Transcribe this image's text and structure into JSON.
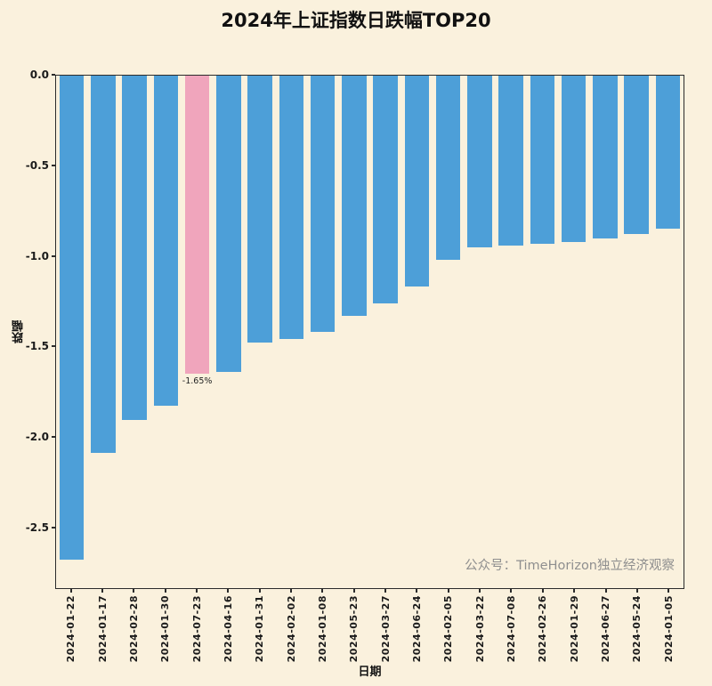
{
  "chart_data": {
    "type": "bar",
    "title": "2024年上证指数日跌幅TOP20",
    "xlabel": "日期",
    "ylabel": "跌幅",
    "ylim": [
      -2.84,
      0
    ],
    "ytick_labels": [
      "0.0",
      "-0.5",
      "-1.0",
      "-1.5",
      "-2.0",
      "-2.5"
    ],
    "ytick_values": [
      0,
      -0.5,
      -1.0,
      -1.5,
      -2.0,
      -2.5
    ],
    "grid": false,
    "legend": "none",
    "categories": [
      "2024-01-22",
      "2024-01-17",
      "2024-02-28",
      "2024-01-30",
      "2024-07-23",
      "2024-04-16",
      "2024-01-31",
      "2024-02-02",
      "2024-01-08",
      "2024-05-23",
      "2024-03-27",
      "2024-06-24",
      "2024-02-05",
      "2024-03-22",
      "2024-07-08",
      "2024-02-26",
      "2024-01-29",
      "2024-06-27",
      "2024-05-24",
      "2024-01-05"
    ],
    "values": [
      -2.68,
      -2.09,
      -1.91,
      -1.83,
      -1.65,
      -1.64,
      -1.48,
      -1.46,
      -1.42,
      -1.33,
      -1.26,
      -1.17,
      -1.02,
      -0.95,
      -0.94,
      -0.93,
      -0.92,
      -0.9,
      -0.88,
      -0.85
    ],
    "highlight": {
      "category": "2024-07-23",
      "value": -1.65,
      "annotation": "-1.65%"
    }
  },
  "watermark": "公众号：TimeHorizon独立经济观察",
  "colors": {
    "background": "#FAF1DD",
    "bar": "#4D9FD8",
    "highlight_bar": "#F0A5BC",
    "text": "#1a1a1a",
    "watermark": "#8f8f8f"
  }
}
